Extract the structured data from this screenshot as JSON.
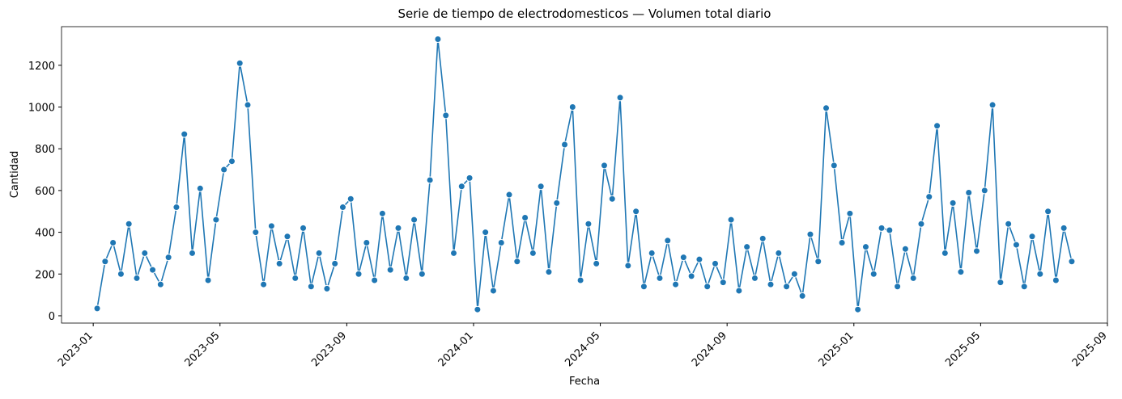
{
  "chart_data": {
    "type": "line",
    "title": "Serie de tiempo de electrodomesticos — Volumen total diario",
    "x_label": "Fecha",
    "y_label": "Cantidad",
    "color": "#1f77b4",
    "x": [
      "2023-01",
      "2023-01",
      "2023-01",
      "2023-01",
      "2023-02",
      "2023-02",
      "2023-02",
      "2023-02",
      "2023-03",
      "2023-03",
      "2023-03",
      "2023-03",
      "2023-04",
      "2023-04",
      "2023-04",
      "2023-04",
      "2023-05",
      "2023-05",
      "2023-05",
      "2023-05",
      "2023-06",
      "2023-06",
      "2023-06",
      "2023-06",
      "2023-07",
      "2023-07",
      "2023-07",
      "2023-07",
      "2023-08",
      "2023-08",
      "2023-08",
      "2023-08",
      "2023-09",
      "2023-09",
      "2023-09",
      "2023-09",
      "2023-10",
      "2023-10",
      "2023-10",
      "2023-10",
      "2023-11",
      "2023-11",
      "2023-11",
      "2023-11",
      "2023-12",
      "2023-12",
      "2023-12",
      "2023-12",
      "2024-01",
      "2024-01",
      "2024-01",
      "2024-01",
      "2024-02",
      "2024-02",
      "2024-02",
      "2024-02",
      "2024-03",
      "2024-03",
      "2024-03",
      "2024-03",
      "2024-04",
      "2024-04",
      "2024-04",
      "2024-04",
      "2024-05",
      "2024-05",
      "2024-05",
      "2024-05",
      "2024-06",
      "2024-06",
      "2024-06",
      "2024-06",
      "2024-07",
      "2024-07",
      "2024-07",
      "2024-07",
      "2024-08",
      "2024-08",
      "2024-08",
      "2024-08",
      "2024-09",
      "2024-09",
      "2024-09",
      "2024-09",
      "2024-10",
      "2024-10",
      "2024-10",
      "2024-10",
      "2024-11",
      "2024-11",
      "2024-11",
      "2024-11",
      "2024-12",
      "2024-12",
      "2024-12",
      "2024-12",
      "2025-01",
      "2025-01",
      "2025-01",
      "2025-01",
      "2025-02",
      "2025-02",
      "2025-02",
      "2025-02",
      "2025-03",
      "2025-03",
      "2025-03",
      "2025-03",
      "2025-04",
      "2025-04",
      "2025-04",
      "2025-04",
      "2025-05",
      "2025-05",
      "2025-05",
      "2025-05",
      "2025-06",
      "2025-06",
      "2025-06",
      "2025-06",
      "2025-07",
      "2025-07",
      "2025-07",
      "2025-07"
    ],
    "values": [
      35,
      260,
      350,
      200,
      440,
      180,
      300,
      220,
      150,
      280,
      520,
      870,
      300,
      610,
      170,
      460,
      700,
      740,
      1210,
      1010,
      400,
      150,
      430,
      250,
      380,
      180,
      420,
      140,
      300,
      130,
      250,
      520,
      560,
      200,
      350,
      170,
      490,
      220,
      420,
      180,
      460,
      200,
      650,
      1325,
      960,
      300,
      620,
      660,
      30,
      400,
      120,
      350,
      580,
      260,
      470,
      300,
      620,
      210,
      540,
      820,
      1000,
      170,
      440,
      250,
      720,
      560,
      1045,
      240,
      500,
      140,
      300,
      180,
      360,
      150,
      280,
      190,
      270,
      140,
      250,
      160,
      460,
      120,
      330,
      180,
      370,
      150,
      300,
      140,
      200,
      95,
      390,
      260,
      995,
      720,
      350,
      490,
      30,
      330,
      200,
      420,
      410,
      140,
      320,
      180,
      440,
      570,
      910,
      300,
      540,
      210,
      590,
      310,
      600,
      1010,
      160,
      440,
      340,
      140,
      380,
      200,
      500,
      170,
      420,
      260
    ],
    "xlim": [
      "2022-12",
      "2025-09"
    ],
    "xticks": [
      "2023-01",
      "2023-05",
      "2023-09",
      "2024-01",
      "2024-05",
      "2024-09",
      "2025-01",
      "2025-05",
      "2025-09"
    ],
    "ylim": [
      -35,
      1385
    ],
    "yticks": [
      0,
      200,
      400,
      600,
      800,
      1000,
      1200
    ],
    "grid": false
  }
}
